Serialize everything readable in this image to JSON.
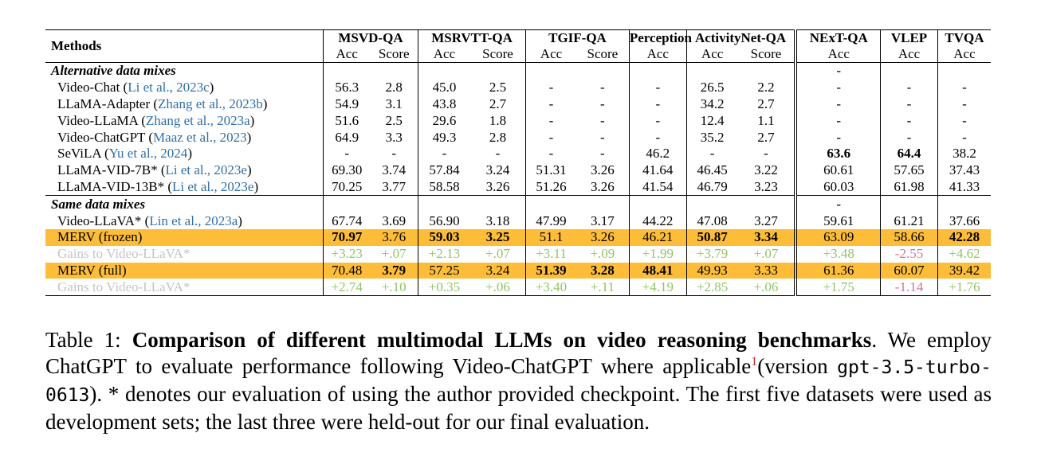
{
  "table": {
    "methods_header": "Methods",
    "groups": [
      {
        "name": "MSVD-QA",
        "subs": [
          "Acc",
          "Score"
        ]
      },
      {
        "name": "MSRVTT-QA",
        "subs": [
          "Acc",
          "Score"
        ]
      },
      {
        "name": "TGIF-QA",
        "subs": [
          "Acc",
          "Score"
        ]
      },
      {
        "name": "Perception",
        "subs": [
          "Acc"
        ]
      },
      {
        "name": "ActivityNet-QA",
        "subs": [
          "Acc",
          "Score"
        ]
      },
      {
        "name": "NExT-QA",
        "subs": [
          "Acc"
        ]
      },
      {
        "name": "VLEP",
        "subs": [
          "Acc"
        ]
      },
      {
        "name": "TVQA",
        "subs": [
          "Acc"
        ]
      }
    ],
    "sections": [
      {
        "title": "Alternative data mixes",
        "section_cells": [
          "",
          "",
          "",
          "",
          "",
          "",
          "",
          "",
          "",
          "-",
          "",
          ""
        ],
        "rows": [
          {
            "method": "Video-Chat",
            "cite": "Li et al., 2023c",
            "cells": [
              "56.3",
              "2.8",
              "45.0",
              "2.5",
              "-",
              "-",
              "-",
              "26.5",
              "2.2",
              "-",
              "-",
              "-"
            ]
          },
          {
            "method": "LLaMA-Adapter",
            "cite": "Zhang et al., 2023b",
            "cells": [
              "54.9",
              "3.1",
              "43.8",
              "2.7",
              "-",
              "-",
              "-",
              "34.2",
              "2.7",
              "-",
              "-",
              "-"
            ]
          },
          {
            "method": "Video-LLaMA",
            "cite": "Zhang et al., 2023a",
            "cells": [
              "51.6",
              "2.5",
              "29.6",
              "1.8",
              "-",
              "-",
              "-",
              "12.4",
              "1.1",
              "-",
              "-",
              "-"
            ]
          },
          {
            "method": "Video-ChatGPT",
            "cite": "Maaz et al., 2023",
            "cells": [
              "64.9",
              "3.3",
              "49.3",
              "2.8",
              "-",
              "-",
              "-",
              "35.2",
              "2.7",
              "-",
              "-",
              "-"
            ]
          },
          {
            "method": "SeViLA",
            "cite": "Yu et al., 2024",
            "cells": [
              "-",
              "-",
              "-",
              "-",
              "-",
              "-",
              "46.2",
              "-",
              "-",
              "63.6",
              "64.4",
              "38.2"
            ],
            "bold": [
              9,
              10
            ]
          },
          {
            "method": "LLaMA-VID-7B*",
            "cite": "Li et al., 2023e",
            "cells": [
              "69.30",
              "3.74",
              "57.84",
              "3.24",
              "51.31",
              "3.26",
              "41.64",
              "46.45",
              "3.22",
              "60.61",
              "57.65",
              "37.43"
            ]
          },
          {
            "method": "LLaMA-VID-13B*",
            "cite": "Li et al., 2023e",
            "cells": [
              "70.25",
              "3.77",
              "58.58",
              "3.26",
              "51.26",
              "3.26",
              "41.54",
              "46.79",
              "3.23",
              "60.03",
              "61.98",
              "41.33"
            ]
          }
        ]
      },
      {
        "title": "Same data mixes",
        "section_cells": [
          "",
          "",
          "",
          "",
          "",
          "",
          "",
          "",
          "",
          "-",
          "",
          ""
        ],
        "rows": [
          {
            "method": "Video-LLaVA*",
            "cite": "Lin et al., 2023a",
            "cells": [
              "67.74",
              "3.69",
              "56.90",
              "3.18",
              "47.99",
              "3.17",
              "44.22",
              "47.08",
              "3.27",
              "59.61",
              "61.21",
              "37.66"
            ]
          },
          {
            "method": "MERV (frozen)",
            "highlight": true,
            "cells": [
              "70.97",
              "3.76",
              "59.03",
              "3.25",
              "51.1",
              "3.26",
              "46.21",
              "50.87",
              "3.34",
              "63.09",
              "58.66",
              "42.28"
            ],
            "bold": [
              0,
              2,
              3,
              7,
              8,
              11
            ]
          },
          {
            "method": "Gains to Video-LLaVA*",
            "gain": true,
            "cells": [
              "+3.23",
              "+.07",
              "+2.13",
              "+.07",
              "+3.11",
              "+.09",
              "+1.99",
              "+3.79",
              "+.07",
              "+3.48",
              "-2.55",
              "+4.62"
            ]
          },
          {
            "method": "MERV (full)",
            "highlight": true,
            "cells": [
              "70.48",
              "3.79",
              "57.25",
              "3.24",
              "51.39",
              "3.28",
              "48.41",
              "49.93",
              "3.33",
              "61.36",
              "60.07",
              "39.42"
            ],
            "bold": [
              1,
              4,
              5,
              6
            ]
          },
          {
            "method": "Gains to Video-LLaVA*",
            "gain": true,
            "cells": [
              "+2.74",
              "+.10",
              "+0.35",
              "+.06",
              "+3.40",
              "+.11",
              "+4.19",
              "+2.85",
              "+.06",
              "+1.75",
              "-1.14",
              "+1.76"
            ]
          }
        ]
      }
    ]
  },
  "caption": {
    "prefix": "Table 1: ",
    "bold": "Comparison of different multimodal LLMs on video reasoning benchmarks",
    "part1": ". We employ ChatGPT to evaluate performance following Video-ChatGPT where applicable",
    "footnote": "1",
    "part2": "(version ",
    "code": "gpt-3.5-turbo-0613",
    "part3": "). * denotes our evaluation of using the author provided checkpoint. The first five datasets were used as development sets; the last three were held-out for our final evaluation."
  },
  "colors": {
    "highlight": "#fdbd38",
    "gain_positive": "#93c566",
    "gain_negative": "#d3768d",
    "citation": "#2f6fa8",
    "footnote": "#c0282d"
  }
}
